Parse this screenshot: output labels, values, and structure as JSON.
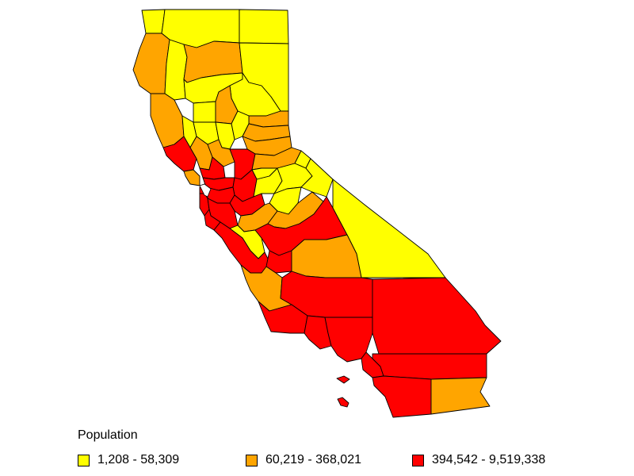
{
  "map": {
    "region": "California",
    "unit": "county",
    "classes": [
      {
        "key": "low",
        "range": "1,208 - 58,309",
        "color": "#ffff00"
      },
      {
        "key": "mid",
        "range": "60,219 - 368,021",
        "color": "#ffa500"
      },
      {
        "key": "high",
        "range": "394,542 - 9,519,338",
        "color": "#ff0000"
      }
    ]
  },
  "legend": {
    "title": "Population",
    "items": [
      {
        "label": "1,208 - 58,309",
        "color": "#ffff00"
      },
      {
        "label": "60,219 - 368,021",
        "color": "#ffa500"
      },
      {
        "label": "394,542 - 9,519,338",
        "color": "#ff0000"
      }
    ]
  }
}
